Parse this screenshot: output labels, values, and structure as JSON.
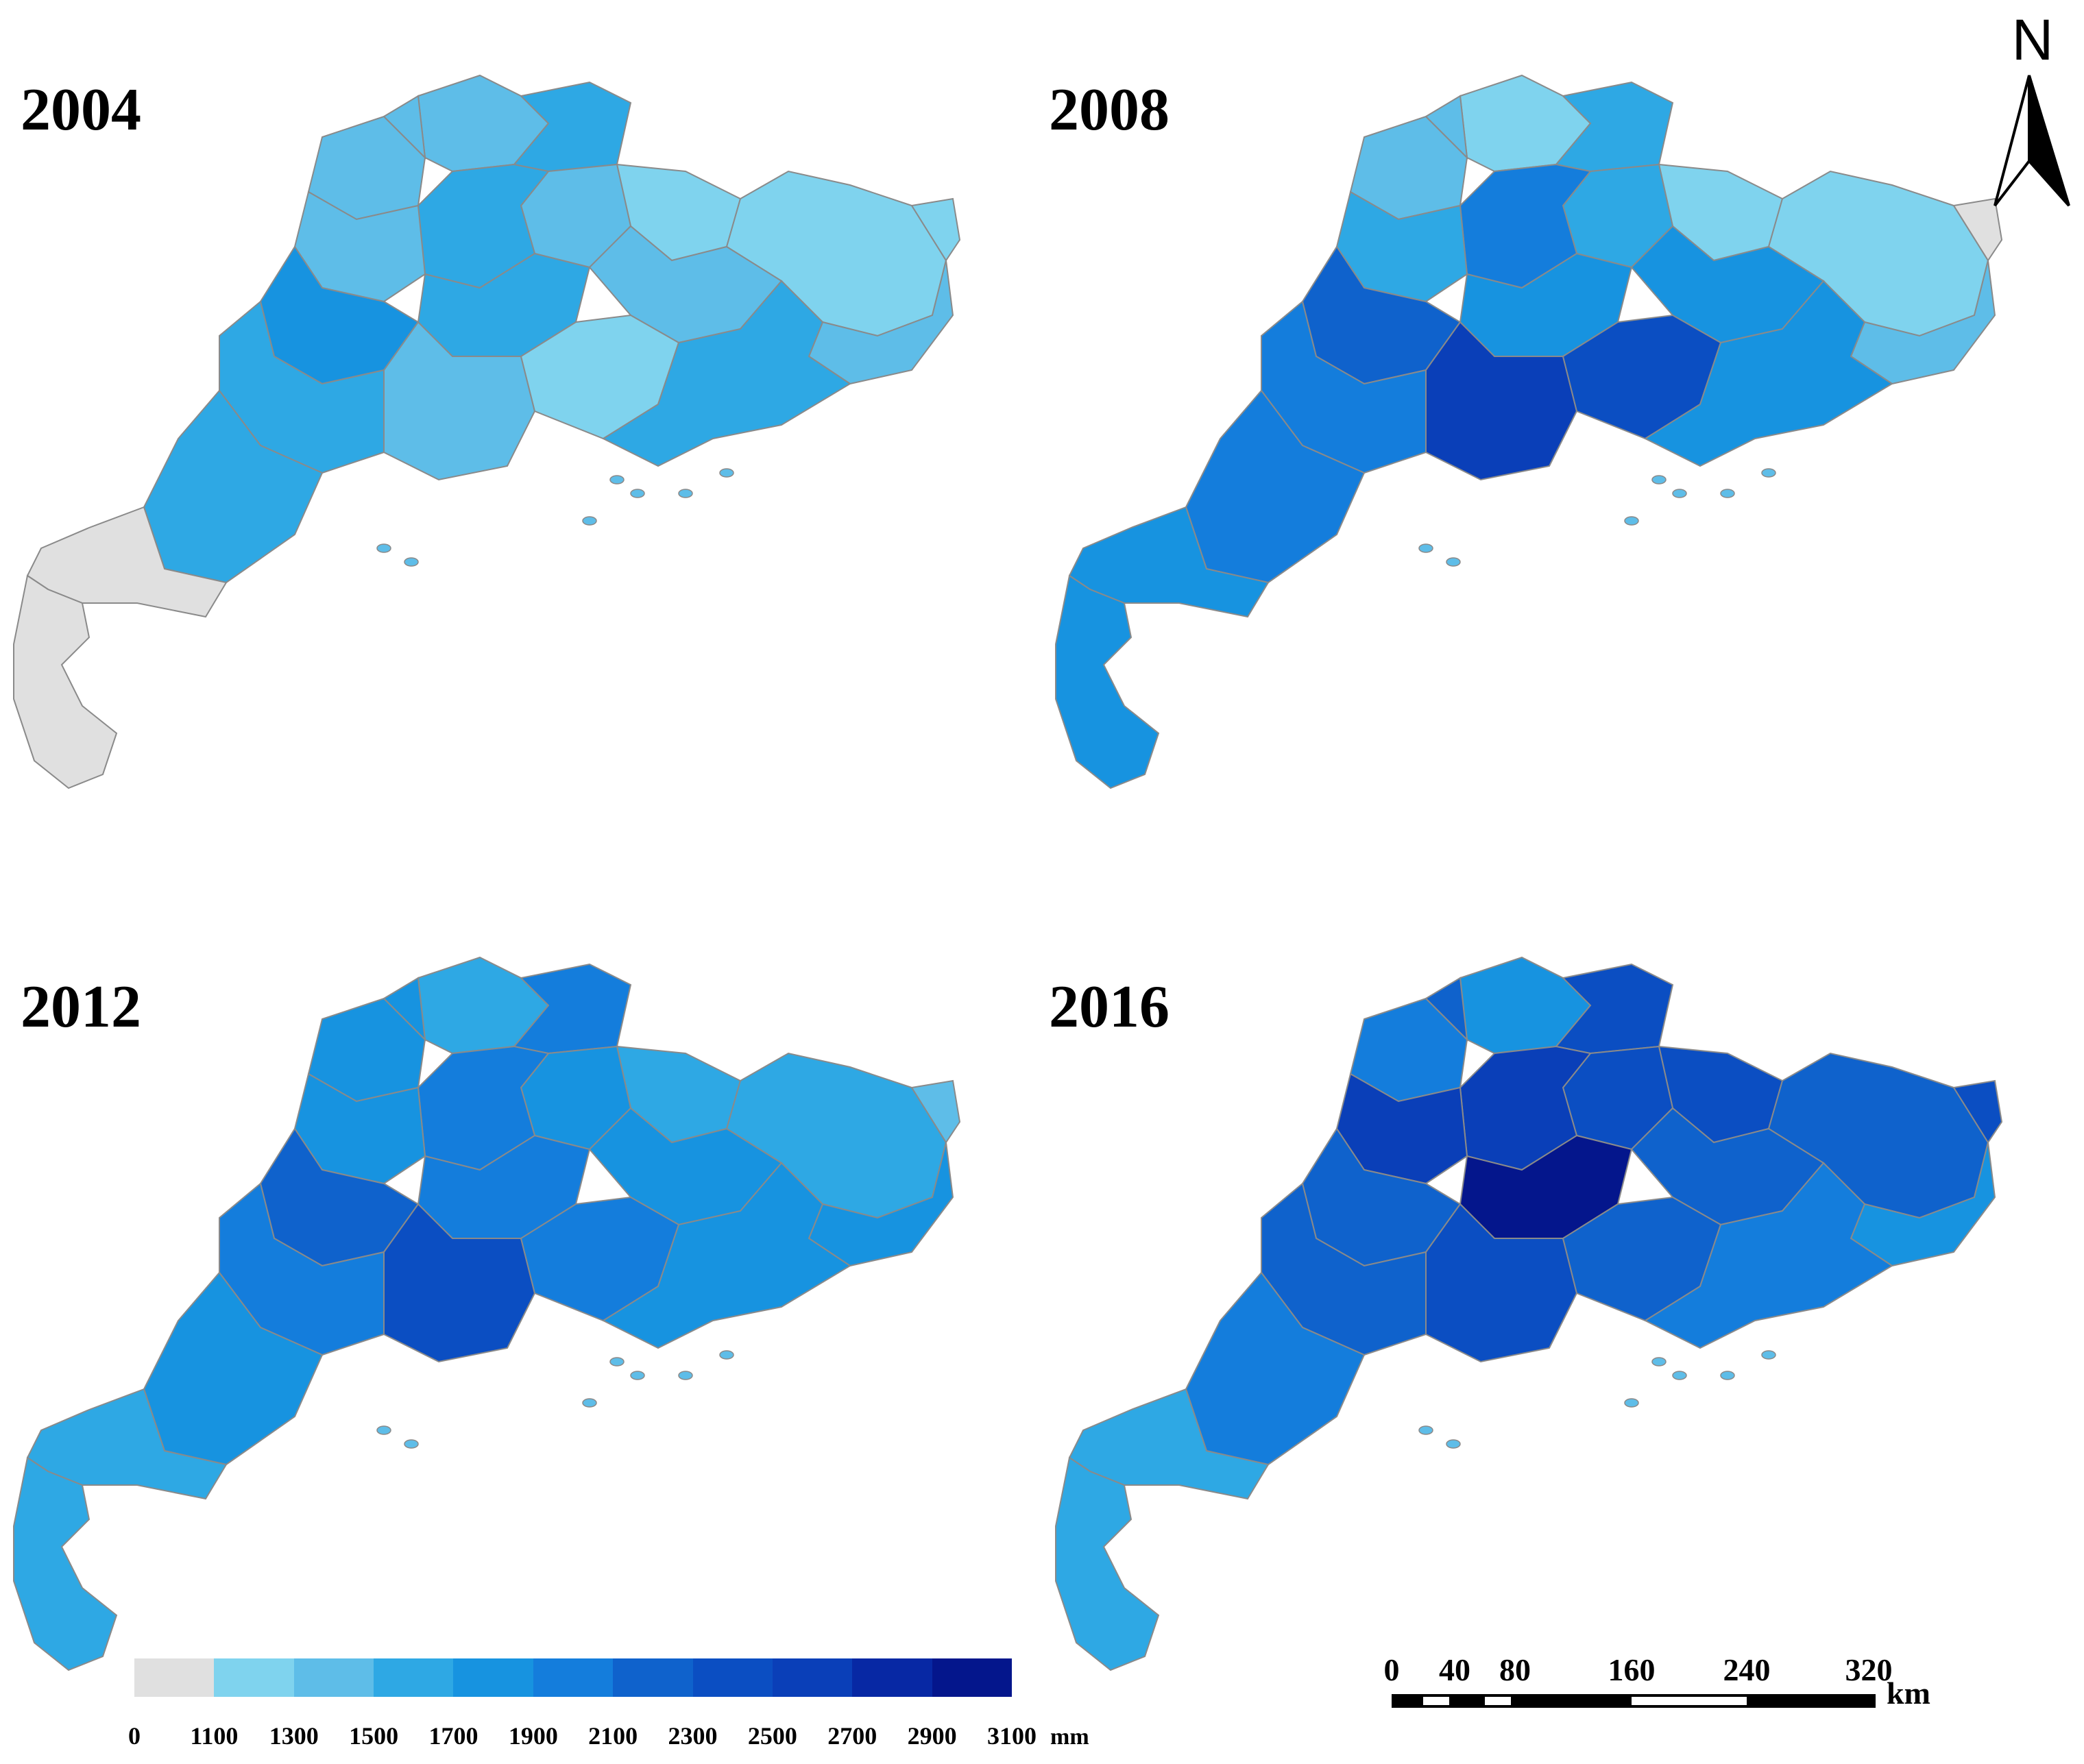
{
  "panels": [
    {
      "year": "2004",
      "regions": [
        "c2",
        "c2",
        "c3",
        "c2",
        "c1",
        "c2",
        "c3",
        "c2",
        "c3",
        "c1",
        "c2",
        "c4",
        "c2",
        "c1",
        "c3",
        "c3",
        "c0",
        "c0",
        "c2",
        "c1",
        "c3"
      ]
    },
    {
      "year": "2008",
      "regions": [
        "c2",
        "c1",
        "c3",
        "c2",
        "c1",
        "c3",
        "c5",
        "c3",
        "c4",
        "c1",
        "c4",
        "c6",
        "c8",
        "c7",
        "c5",
        "c5",
        "c4",
        "c4",
        "c2",
        "c0",
        "c4"
      ]
    },
    {
      "year": "2012",
      "regions": [
        "c4",
        "c3",
        "c5",
        "c4",
        "c3",
        "c4",
        "c5",
        "c4",
        "c5",
        "c3",
        "c4",
        "c6",
        "c7",
        "c5",
        "c5",
        "c4",
        "c3",
        "c3",
        "c4",
        "c2",
        "c4"
      ]
    },
    {
      "year": "2016",
      "regions": [
        "c5",
        "c4",
        "c7",
        "c6",
        "c7",
        "c7",
        "c8",
        "c8",
        "c9",
        "c6",
        "c6",
        "c6",
        "c7",
        "c6",
        "c6",
        "c5",
        "c3",
        "c3",
        "c4",
        "c7",
        "c5"
      ]
    }
  ],
  "legend": {
    "colors": [
      "#e0e0e0",
      "#7fd3ee",
      "#5ebde8",
      "#2ea8e4",
      "#1793e0",
      "#147ddc",
      "#0f62cc",
      "#0b4ec2",
      "#0a3fb8",
      "#0728a4",
      "#04168c"
    ],
    "ticks": [
      "0",
      "1100",
      "1300",
      "1500",
      "1700",
      "1900",
      "2100",
      "2300",
      "2500",
      "2700",
      "2900",
      "3100"
    ],
    "unit": "mm"
  },
  "north_arrow": {
    "label": "N"
  },
  "scale_bar": {
    "labels": [
      "0",
      "40",
      "80",
      "160",
      "240",
      "320"
    ],
    "unit": "km"
  },
  "palette": {
    "c0": "#e0e0e0",
    "c1": "#7fd3ee",
    "c2": "#5ebde8",
    "c3": "#2ea8e4",
    "c4": "#1793e0",
    "c5": "#147ddc",
    "c6": "#0f62cc",
    "c7": "#0b4ec2",
    "c8": "#0a3fb8",
    "c9": "#04168c",
    "border": "#8a8a8a"
  }
}
